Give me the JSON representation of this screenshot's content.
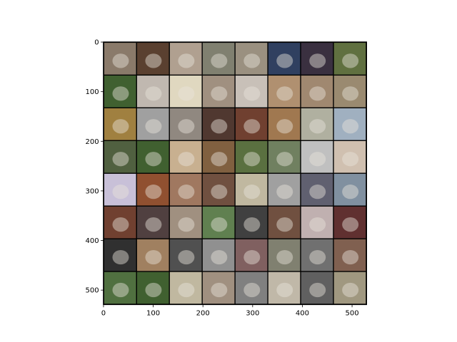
{
  "chart_data": {
    "type": "image",
    "xlim": [
      -0.5,
      529.5
    ],
    "ylim": [
      529.5,
      -0.5
    ],
    "xticks": [
      0,
      100,
      200,
      300,
      400,
      500
    ],
    "yticks": [
      0,
      100,
      200,
      300,
      400,
      500
    ]
  }
}
